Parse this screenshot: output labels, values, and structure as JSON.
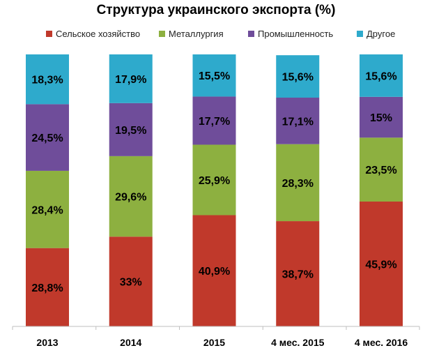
{
  "chart_data": {
    "type": "bar",
    "stacked": true,
    "title": "Структура украинского экспорта (%)",
    "xlabel": "",
    "ylabel": "",
    "ylim": [
      0,
      100
    ],
    "grid": false,
    "legend_position": "top",
    "categories": [
      "2013",
      "2014",
      "2015",
      "4 мес. 2015",
      "4 мес. 2016"
    ],
    "series": [
      {
        "name": "Сельское хозяйство",
        "color": "#c0392b",
        "values": [
          28.8,
          33,
          40.9,
          38.7,
          45.9
        ],
        "labels": [
          "28,8%",
          "33%",
          "40,9%",
          "38,7%",
          "45,9%"
        ]
      },
      {
        "name": "Металлургия",
        "color": "#8db040",
        "values": [
          28.4,
          29.6,
          25.9,
          28.3,
          23.5
        ],
        "labels": [
          "28,4%",
          "29,6%",
          "25,9%",
          "28,3%",
          "23,5%"
        ]
      },
      {
        "name": "Промышленность",
        "color": "#6f4d9a",
        "values": [
          24.5,
          19.5,
          17.7,
          17.1,
          15
        ],
        "labels": [
          "24,5%",
          "19,5%",
          "17,7%",
          "17,1%",
          "15%"
        ]
      },
      {
        "name": "Другое",
        "color": "#2eaacc",
        "values": [
          18.3,
          17.9,
          15.5,
          15.6,
          15.6
        ],
        "labels": [
          "18,3%",
          "17,9%",
          "15,5%",
          "15,6%",
          "15,6%"
        ]
      }
    ]
  }
}
